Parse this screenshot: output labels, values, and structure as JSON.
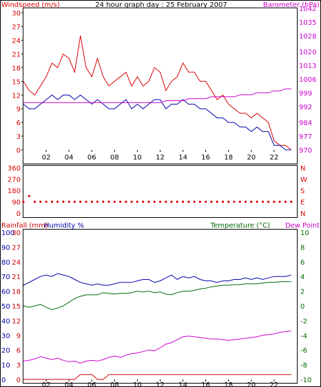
{
  "colors": {
    "wind": "#dd0000",
    "gust": "#dd0000",
    "baro": "#cc00cc",
    "humidity": "#0000aa",
    "temperature": "#006600",
    "dewpoint": "#cc00cc",
    "rain": "#cc0000",
    "frame": "#000000",
    "grid": "#bbbbbb"
  },
  "chart_data": [
    {
      "type": "line",
      "title": "24 hour graph day : 25 February 2007",
      "left_label": "Windspeed (m/s)",
      "right_label": "Barometer (hPa)",
      "x_ticks": [
        "02",
        "04",
        "06",
        "08",
        "10",
        "12",
        "14",
        "16",
        "18",
        "20",
        "22"
      ],
      "y_left_ticks": [
        "0",
        "3",
        "6",
        "9",
        "12",
        "15",
        "18",
        "21",
        "24",
        "27",
        "30"
      ],
      "y_right_ticks": [
        "970",
        "977",
        "984",
        "992",
        "999",
        "1006",
        "1013",
        "1020",
        "1028",
        "1035",
        "1042"
      ],
      "ylim_left": [
        0,
        31
      ],
      "ylim_right": [
        970,
        1042
      ],
      "x_hours": [
        0,
        0.5,
        1,
        1.5,
        2,
        2.5,
        3,
        3.5,
        4,
        4.5,
        5,
        5.5,
        6,
        6.5,
        7,
        7.5,
        8,
        8.5,
        9,
        9.5,
        10,
        10.5,
        11,
        11.5,
        12,
        12.5,
        13,
        13.5,
        14,
        14.5,
        15,
        15.5,
        16,
        16.5,
        17,
        17.5,
        18,
        18.5,
        19,
        19.5,
        20,
        20.5,
        21,
        21.5,
        22,
        22.5,
        23,
        23.5
      ],
      "series": [
        {
          "name": "gust",
          "values": [
            15,
            13,
            12,
            14,
            16,
            19,
            18,
            21,
            20,
            17,
            25,
            18,
            16,
            20,
            16,
            14,
            15,
            16,
            17,
            14,
            16,
            14,
            15,
            18,
            17,
            13,
            15,
            16,
            19,
            17,
            17,
            15,
            15,
            13,
            11,
            12,
            10,
            9,
            8,
            8,
            7,
            8,
            7,
            6,
            2,
            1,
            1,
            0
          ]
        },
        {
          "name": "wind",
          "values": [
            10,
            9,
            9,
            10,
            11,
            12,
            11,
            12,
            12,
            11,
            12,
            11,
            10,
            11,
            10,
            9,
            9,
            10,
            11,
            9,
            10,
            9,
            10,
            11,
            11,
            9,
            10,
            10,
            11,
            10,
            10,
            9,
            9,
            8,
            7,
            7,
            6,
            6,
            5,
            5,
            4,
            5,
            4,
            4,
            1,
            1,
            0,
            0
          ]
        },
        {
          "name": "barometer",
          "values": [
            994,
            994,
            994,
            994,
            994,
            994,
            994,
            994,
            994,
            994,
            994,
            994,
            994,
            994,
            994,
            994,
            994,
            994,
            994,
            994,
            994,
            994,
            994,
            994,
            994,
            995,
            995,
            995,
            995,
            996,
            996,
            996,
            996,
            997,
            997,
            997,
            997,
            997,
            998,
            998,
            998,
            999,
            999,
            999,
            1000,
            1000,
            1001,
            1001
          ]
        }
      ]
    },
    {
      "type": "scatter",
      "title": "",
      "y_left_ticks": [
        "360",
        "270",
        "180",
        "90",
        "0"
      ],
      "y_right_ticks": [
        "N",
        "W",
        "S",
        "E",
        "N"
      ],
      "ylim": [
        0,
        360
      ],
      "series": [
        {
          "name": "direction",
          "values": [
            90,
            135,
            90,
            90,
            90,
            90,
            90,
            90,
            90,
            90,
            90,
            90,
            90,
            90,
            90,
            90,
            90,
            90,
            90,
            90,
            90,
            90,
            90,
            90,
            90,
            90,
            90,
            90,
            90,
            90,
            90,
            90,
            90,
            90,
            90,
            90,
            90,
            90,
            90,
            90,
            90,
            90,
            90,
            90,
            90,
            90,
            90,
            90
          ]
        }
      ]
    },
    {
      "type": "line",
      "title": "",
      "left_label_rain": "Rainfall (mm)",
      "left_label_humidity": "Humidity %",
      "right_label_temp": "Temperature (°C)",
      "right_label_dew": "Dew Point",
      "x_ticks": [
        "02",
        "04",
        "06",
        "08",
        "10",
        "12",
        "14",
        "16",
        "18",
        "20",
        "22"
      ],
      "y_humidity_ticks": [
        "0",
        "10",
        "20",
        "30",
        "40",
        "50",
        "60",
        "70",
        "80",
        "90",
        "100"
      ],
      "y_rain_ticks": [
        "0",
        "3",
        "6",
        "9",
        "12",
        "15",
        "18",
        "21",
        "24",
        "27",
        "30"
      ],
      "y_temp_ticks": [
        "-10",
        "-8",
        "-6",
        "-4",
        "-2",
        "0",
        "2",
        "4",
        "6",
        "8",
        "10"
      ],
      "ylim_humidity": [
        0,
        100
      ],
      "ylim_temp": [
        -10,
        10
      ],
      "series": [
        {
          "name": "humidity",
          "values": [
            64,
            66,
            68,
            70,
            71,
            70,
            72,
            71,
            70,
            68,
            66,
            65,
            64,
            65,
            64,
            64,
            65,
            66,
            66,
            66,
            67,
            68,
            68,
            66,
            67,
            69,
            71,
            68,
            70,
            69,
            70,
            68,
            67,
            67,
            66,
            67,
            67,
            68,
            68,
            69,
            68,
            69,
            68,
            69,
            70,
            70,
            70,
            71
          ]
        },
        {
          "name": "temperature",
          "values": [
            0,
            -0.2,
            0,
            0.2,
            -0.2,
            -0.5,
            -0.3,
            0,
            0.5,
            1,
            1.3,
            1.5,
            1.5,
            1.5,
            1.8,
            1.7,
            1.6,
            1.7,
            1.7,
            1.8,
            2,
            1.9,
            2,
            1.8,
            1.9,
            1.6,
            1.5,
            1.8,
            2,
            2,
            2.1,
            2.3,
            2.4,
            2.6,
            2.7,
            2.8,
            2.8,
            2.9,
            2.9,
            3,
            3,
            3,
            3.1,
            3.2,
            3.2,
            3.3,
            3.3,
            3.3
          ]
        },
        {
          "name": "dewpoint",
          "values": [
            -7.5,
            -7.4,
            -7.2,
            -6.9,
            -7.1,
            -7.3,
            -7.1,
            -7.4,
            -7.6,
            -7.5,
            -7.8,
            -7.5,
            -7.4,
            -7.5,
            -7.3,
            -7,
            -6.8,
            -7,
            -6.7,
            -6.5,
            -6.4,
            -6.2,
            -6,
            -6.1,
            -5.7,
            -5.2,
            -5,
            -4.6,
            -4.2,
            -4.1,
            -4.2,
            -4.3,
            -4.4,
            -4.5,
            -4.5,
            -4.6,
            -4.7,
            -4.6,
            -4.5,
            -4.4,
            -4.3,
            -4.2,
            -4,
            -3.9,
            -3.8,
            -3.6,
            -3.5,
            -3.4
          ]
        },
        {
          "name": "rainfall",
          "values": [
            0,
            0,
            0,
            0,
            0,
            0,
            0,
            0,
            0,
            0,
            1,
            1,
            1,
            0,
            0,
            1,
            1,
            1,
            1,
            1,
            1,
            1,
            1,
            1,
            1,
            1,
            1,
            1,
            1,
            1,
            1,
            1,
            1,
            1,
            1,
            1,
            1,
            1,
            1,
            1,
            1,
            1,
            1,
            1,
            1,
            1,
            1,
            1
          ]
        }
      ]
    }
  ]
}
